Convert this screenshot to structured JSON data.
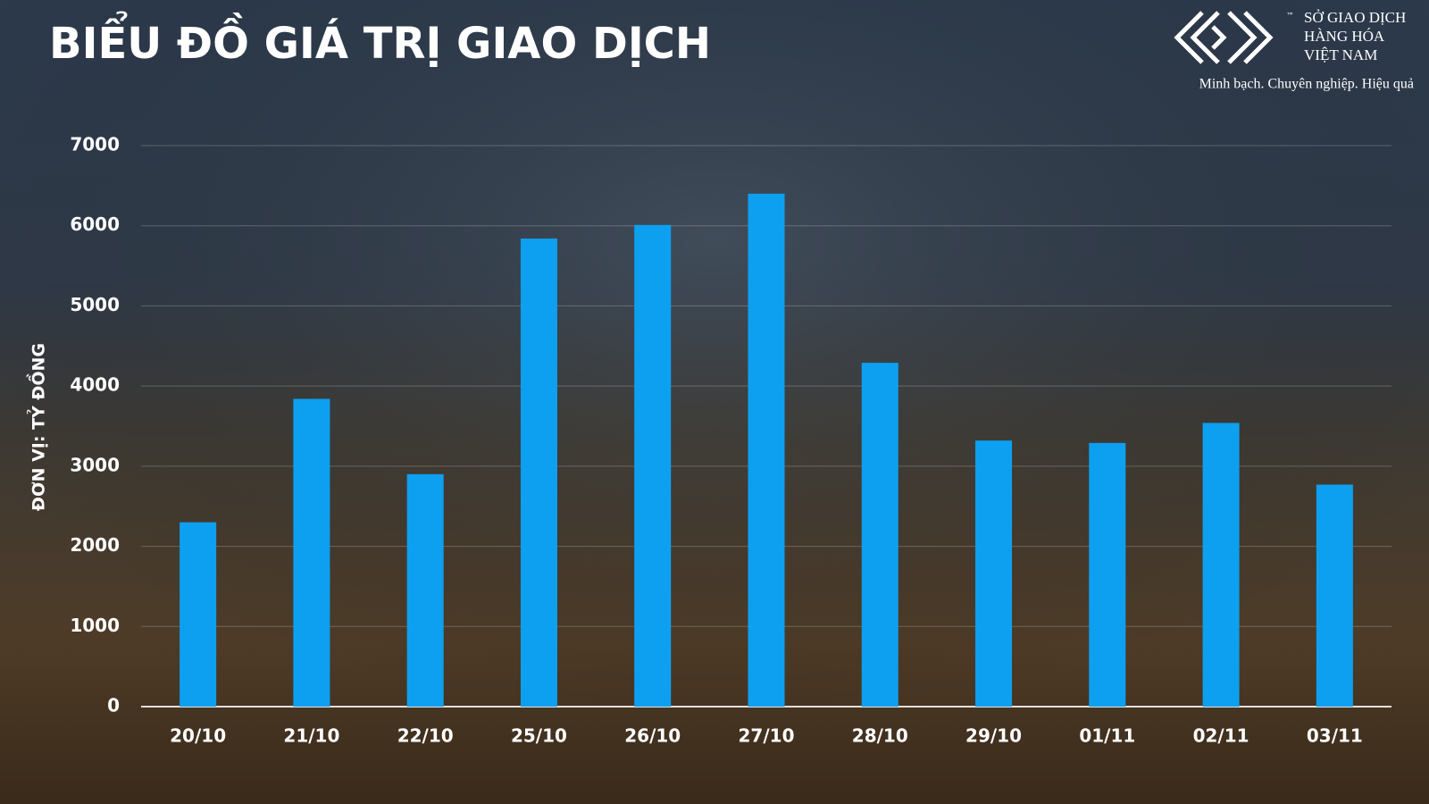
{
  "chart_data": {
    "type": "bar",
    "title": "BIỂU ĐỒ GIÁ TRỊ GIAO DỊCH",
    "y_axis_label": "ĐƠN VỊ: TỶ ĐỒNG",
    "categories": [
      "20/10",
      "21/10",
      "22/10",
      "25/10",
      "26/10",
      "27/10",
      "28/10",
      "29/10",
      "01/11",
      "02/11",
      "03/11"
    ],
    "values": [
      2300,
      3840,
      2900,
      5840,
      6010,
      6400,
      4290,
      3320,
      3290,
      3540,
      2770
    ],
    "color": "#0ea0f0",
    "ylim": [
      0,
      7000
    ],
    "yticks": [
      0,
      1000,
      2000,
      3000,
      4000,
      5000,
      6000,
      7000
    ],
    "grid": true
  },
  "logo": {
    "name_lines": [
      "SỞ GIAO DỊCH",
      "HÀNG HÓA",
      "VIỆT NAM"
    ],
    "trademark": "™",
    "tagline": "Minh bạch. Chuyên nghiệp. Hiệu quả"
  }
}
